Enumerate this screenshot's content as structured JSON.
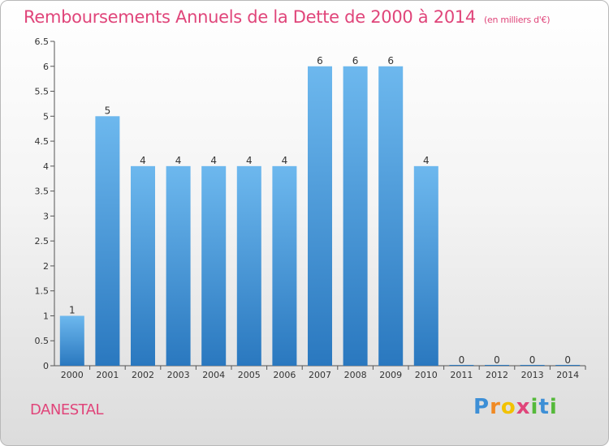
{
  "header": {
    "title": "Remboursements Annuels de la Dette de 2000 à 2014",
    "subtitle": "(en milliers d'€)"
  },
  "footer": {
    "commune": "DANESTAL",
    "logo_letters": [
      "P",
      "r",
      "o",
      "x",
      "i",
      "t",
      "i"
    ],
    "logo_colors": [
      "#3d8fd6",
      "#f08a24",
      "#f2c200",
      "#e0457a",
      "#55b93a",
      "#3d8fd6",
      "#55b93a"
    ]
  },
  "colors": {
    "accent": "#e0457a",
    "bar_top": "#6db8ee",
    "bar_bottom": "#2a78bf"
  },
  "chart_data": {
    "type": "bar",
    "title": "Remboursements Annuels de la Dette de 2000 à 2014",
    "categories": [
      "2000",
      "2001",
      "2002",
      "2003",
      "2004",
      "2005",
      "2006",
      "2007",
      "2008",
      "2009",
      "2010",
      "2011",
      "2012",
      "2013",
      "2014"
    ],
    "values": [
      1,
      5,
      4,
      4,
      4,
      4,
      4,
      6,
      6,
      6,
      4,
      0,
      0,
      0,
      0
    ],
    "ylim": [
      0,
      6.5
    ],
    "yticks": [
      "0",
      "0.5",
      "1",
      "1.5",
      "2",
      "2.5",
      "3",
      "3.5",
      "4",
      "4.5",
      "5",
      "5.5",
      "6",
      "6.5"
    ],
    "grid": false,
    "legend": "none"
  }
}
